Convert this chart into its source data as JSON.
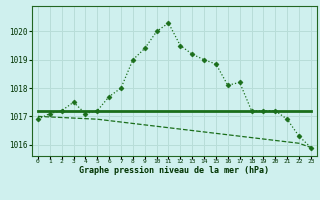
{
  "title": "Graphe pression niveau de la mer (hPa)",
  "background_color": "#cff0ee",
  "grid_color": "#b8ddd8",
  "line_color": "#1a6e1a",
  "x_labels": [
    "0",
    "1",
    "2",
    "3",
    "4",
    "5",
    "6",
    "7",
    "8",
    "9",
    "10",
    "11",
    "12",
    "13",
    "14",
    "15",
    "16",
    "17",
    "18",
    "19",
    "20",
    "21",
    "22",
    "23"
  ],
  "hours": [
    0,
    1,
    2,
    3,
    4,
    5,
    6,
    7,
    8,
    9,
    10,
    11,
    12,
    13,
    14,
    15,
    16,
    17,
    18,
    19,
    20,
    21,
    22,
    23
  ],
  "pressure_main": [
    1016.9,
    1017.1,
    1017.2,
    1017.5,
    1017.1,
    1017.2,
    1017.7,
    1018.0,
    1019.0,
    1019.4,
    1020.0,
    1020.3,
    1019.5,
    1019.2,
    1019.0,
    1018.85,
    1018.1,
    1018.2,
    1017.2,
    1017.2,
    1017.2,
    1016.9,
    1016.3,
    1015.9
  ],
  "pressure_flat": [
    1017.2,
    1017.2,
    1017.2,
    1017.2,
    1017.2,
    1017.2,
    1017.2,
    1017.2,
    1017.2,
    1017.2,
    1017.2,
    1017.2,
    1017.2,
    1017.2,
    1017.2,
    1017.2,
    1017.2,
    1017.2,
    1017.2,
    1017.2,
    1017.2,
    1017.2,
    1017.2,
    1017.2
  ],
  "pressure_decline": [
    1017.0,
    1016.98,
    1016.96,
    1016.94,
    1016.92,
    1016.9,
    1016.85,
    1016.8,
    1016.75,
    1016.7,
    1016.65,
    1016.6,
    1016.55,
    1016.5,
    1016.45,
    1016.4,
    1016.35,
    1016.3,
    1016.25,
    1016.2,
    1016.15,
    1016.1,
    1016.05,
    1015.9
  ],
  "ylim_min": 1015.6,
  "ylim_max": 1020.9,
  "yticks": [
    1016,
    1017,
    1018,
    1019,
    1020
  ]
}
